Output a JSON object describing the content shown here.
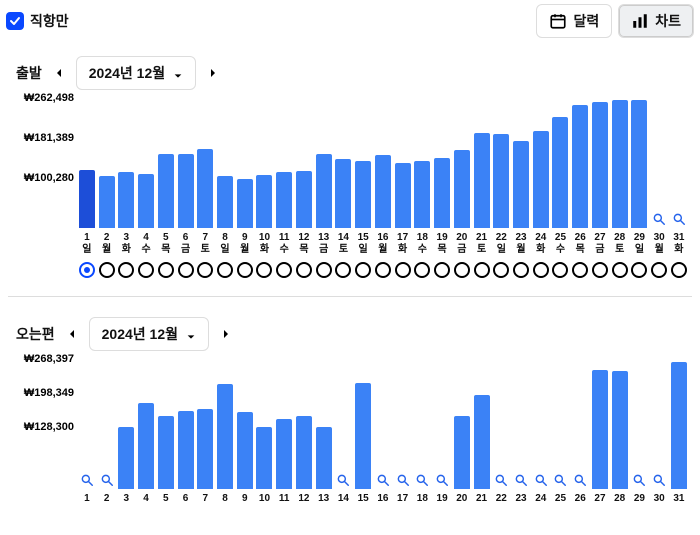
{
  "topbar": {
    "direct_label": "직항만",
    "direct_checked": true,
    "calendar_label": "달력",
    "chart_label": "차트",
    "active_view": "chart"
  },
  "colors": {
    "accent": "#0a48ff",
    "bar": "#3b82f6",
    "bar_selected": "#1d4ed8",
    "magnify": "#2563eb",
    "radio_border": "#000000"
  },
  "depart": {
    "title": "출발",
    "month_label": "2024년 12월",
    "chart": {
      "type": "bar",
      "currency_prefix": "₩",
      "y_ticks": [
        100280,
        181389,
        262498
      ],
      "y_tick_labels": [
        "₩100,280",
        "₩181,389",
        "₩262,498"
      ],
      "ymax": 262498,
      "bar_color": "#3b82f6",
      "selected_color": "#1d4ed8",
      "selected_index": 0,
      "days": [
        {
          "d": 1,
          "dow": "일",
          "v": 118000
        },
        {
          "d": 2,
          "dow": "월",
          "v": 105000
        },
        {
          "d": 3,
          "dow": "화",
          "v": 113000
        },
        {
          "d": 4,
          "dow": "수",
          "v": 109000
        },
        {
          "d": 5,
          "dow": "목",
          "v": 150000
        },
        {
          "d": 6,
          "dow": "금",
          "v": 150000
        },
        {
          "d": 7,
          "dow": "토",
          "v": 160000
        },
        {
          "d": 8,
          "dow": "일",
          "v": 105000
        },
        {
          "d": 9,
          "dow": "월",
          "v": 99000
        },
        {
          "d": 10,
          "dow": "화",
          "v": 108000
        },
        {
          "d": 11,
          "dow": "수",
          "v": 113000
        },
        {
          "d": 12,
          "dow": "목",
          "v": 115000
        },
        {
          "d": 13,
          "dow": "금",
          "v": 150000
        },
        {
          "d": 14,
          "dow": "토",
          "v": 140000
        },
        {
          "d": 15,
          "dow": "일",
          "v": 135000
        },
        {
          "d": 16,
          "dow": "월",
          "v": 148000
        },
        {
          "d": 17,
          "dow": "화",
          "v": 132000
        },
        {
          "d": 18,
          "dow": "수",
          "v": 135000
        },
        {
          "d": 19,
          "dow": "목",
          "v": 142000
        },
        {
          "d": 20,
          "dow": "금",
          "v": 158000
        },
        {
          "d": 21,
          "dow": "토",
          "v": 192000
        },
        {
          "d": 22,
          "dow": "일",
          "v": 190000
        },
        {
          "d": 23,
          "dow": "월",
          "v": 175000
        },
        {
          "d": 24,
          "dow": "화",
          "v": 195000
        },
        {
          "d": 25,
          "dow": "수",
          "v": 225000
        },
        {
          "d": 26,
          "dow": "목",
          "v": 248000
        },
        {
          "d": 27,
          "dow": "금",
          "v": 255000
        },
        {
          "d": 28,
          "dow": "토",
          "v": 258000
        },
        {
          "d": 29,
          "dow": "일",
          "v": 258000
        },
        {
          "d": 30,
          "dow": "월",
          "v": null
        },
        {
          "d": 31,
          "dow": "화",
          "v": null
        }
      ]
    }
  },
  "return": {
    "title": "오는편",
    "month_label": "2024년 12월",
    "chart": {
      "type": "bar",
      "currency_prefix": "₩",
      "y_ticks": [
        128300,
        198349,
        268397
      ],
      "y_tick_labels": [
        "₩128,300",
        "₩198,349",
        "₩268,397"
      ],
      "ymax": 268397,
      "bar_color": "#3b82f6",
      "days": [
        {
          "d": 1,
          "v": null
        },
        {
          "d": 2,
          "v": null
        },
        {
          "d": 3,
          "v": 128000
        },
        {
          "d": 4,
          "v": 178000
        },
        {
          "d": 5,
          "v": 150000
        },
        {
          "d": 6,
          "v": 162000
        },
        {
          "d": 7,
          "v": 165000
        },
        {
          "d": 8,
          "v": 217000
        },
        {
          "d": 9,
          "v": 158000
        },
        {
          "d": 10,
          "v": 128000
        },
        {
          "d": 11,
          "v": 145000
        },
        {
          "d": 12,
          "v": 150000
        },
        {
          "d": 13,
          "v": 128000
        },
        {
          "d": 14,
          "v": null
        },
        {
          "d": 15,
          "v": 218000
        },
        {
          "d": 16,
          "v": null
        },
        {
          "d": 17,
          "v": null
        },
        {
          "d": 18,
          "v": null
        },
        {
          "d": 19,
          "v": null
        },
        {
          "d": 20,
          "v": 150000
        },
        {
          "d": 21,
          "v": 195000
        },
        {
          "d": 22,
          "v": null
        },
        {
          "d": 23,
          "v": null
        },
        {
          "d": 24,
          "v": null
        },
        {
          "d": 25,
          "v": null
        },
        {
          "d": 26,
          "v": null
        },
        {
          "d": 27,
          "v": 245000
        },
        {
          "d": 28,
          "v": 243000
        },
        {
          "d": 29,
          "v": null
        },
        {
          "d": 30,
          "v": null
        },
        {
          "d": 31,
          "v": 262000
        }
      ]
    }
  }
}
